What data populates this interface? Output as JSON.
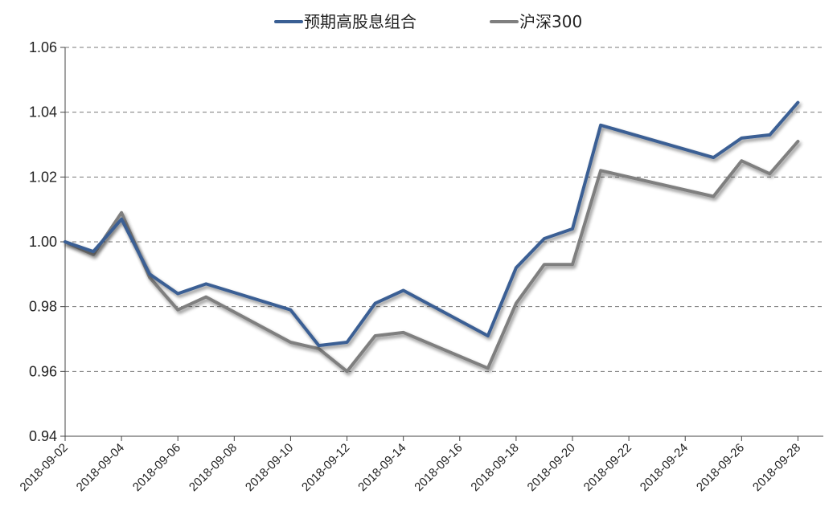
{
  "chart_data": {
    "type": "line",
    "title": "",
    "xlabel": "",
    "ylabel": "",
    "ylim": [
      0.94,
      1.06
    ],
    "yticks": [
      "0.94",
      "0.96",
      "0.98",
      "1.00",
      "1.02",
      "1.04",
      "1.06"
    ],
    "xlim": [
      "2018-09-02",
      "2018-09-28"
    ],
    "xticks": [
      "2018-09-02",
      "2018-09-04",
      "2018-09-06",
      "2018-09-08",
      "2018-09-10",
      "2018-09-12",
      "2018-09-14",
      "2018-09-16",
      "2018-09-18",
      "2018-09-20",
      "2018-09-22",
      "2018-09-24",
      "2018-09-26",
      "2018-09-28"
    ],
    "grid": "horizontal dashed",
    "legend_position": "top-center",
    "series": [
      {
        "name": "预期高股息组合",
        "color": "#3a5f94",
        "points": [
          [
            "2018-09-02",
            1.0
          ],
          [
            "2018-09-03",
            0.997
          ],
          [
            "2018-09-04",
            1.007
          ],
          [
            "2018-09-05",
            0.99
          ],
          [
            "2018-09-06",
            0.984
          ],
          [
            "2018-09-07",
            0.987
          ],
          [
            "2018-09-10",
            0.979
          ],
          [
            "2018-09-11",
            0.968
          ],
          [
            "2018-09-12",
            0.969
          ],
          [
            "2018-09-13",
            0.981
          ],
          [
            "2018-09-14",
            0.985
          ],
          [
            "2018-09-17",
            0.971
          ],
          [
            "2018-09-18",
            0.992
          ],
          [
            "2018-09-19",
            1.001
          ],
          [
            "2018-09-20",
            1.004
          ],
          [
            "2018-09-21",
            1.036
          ],
          [
            "2018-09-25",
            1.026
          ],
          [
            "2018-09-26",
            1.032
          ],
          [
            "2018-09-27",
            1.033
          ],
          [
            "2018-09-28",
            1.043
          ]
        ]
      },
      {
        "name": "沪深300",
        "color": "#7f7f7f",
        "points": [
          [
            "2018-09-02",
            1.0
          ],
          [
            "2018-09-03",
            0.996
          ],
          [
            "2018-09-04",
            1.009
          ],
          [
            "2018-09-05",
            0.989
          ],
          [
            "2018-09-06",
            0.979
          ],
          [
            "2018-09-07",
            0.983
          ],
          [
            "2018-09-10",
            0.969
          ],
          [
            "2018-09-11",
            0.967
          ],
          [
            "2018-09-12",
            0.96
          ],
          [
            "2018-09-13",
            0.971
          ],
          [
            "2018-09-14",
            0.972
          ],
          [
            "2018-09-17",
            0.961
          ],
          [
            "2018-09-18",
            0.981
          ],
          [
            "2018-09-19",
            0.993
          ],
          [
            "2018-09-20",
            0.993
          ],
          [
            "2018-09-21",
            1.022
          ],
          [
            "2018-09-25",
            1.014
          ],
          [
            "2018-09-26",
            1.025
          ],
          [
            "2018-09-27",
            1.021
          ],
          [
            "2018-09-28",
            1.031
          ]
        ]
      }
    ]
  }
}
